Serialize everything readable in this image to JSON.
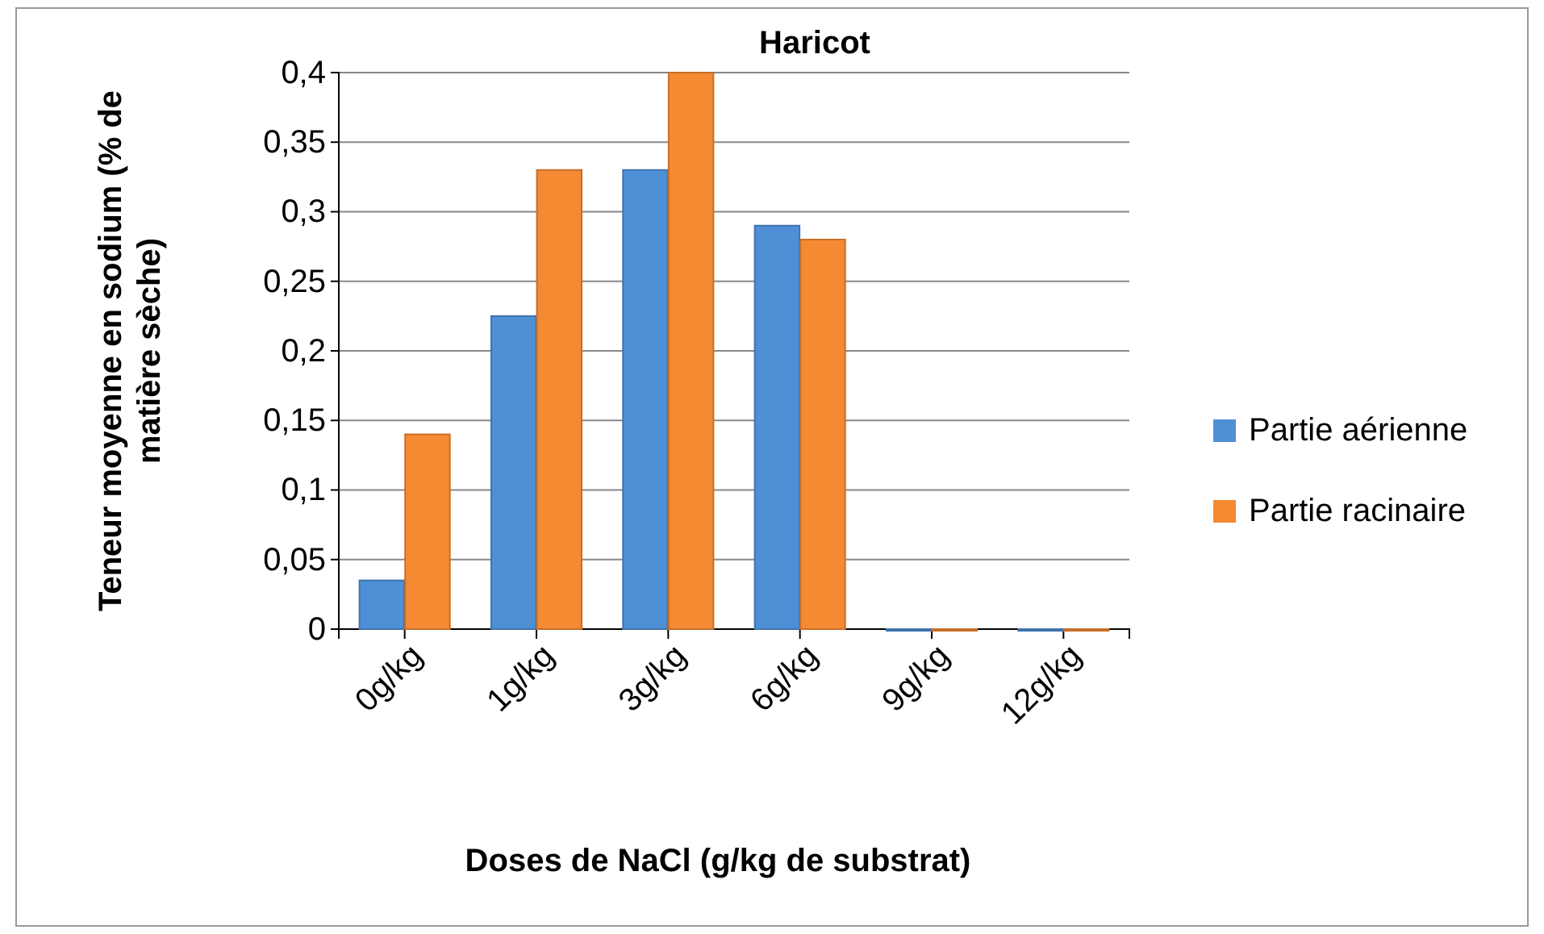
{
  "chart_data": {
    "type": "bar",
    "title": "Haricot",
    "xlabel": "Doses de NaCl (g/kg de substrat)",
    "ylabel": "Teneur moyenne en sodium (% de matière sèche)",
    "categories": [
      "0g/kg",
      "1g/kg",
      "3g/kg",
      "6g/kg",
      "9g/kg",
      "12g/kg"
    ],
    "series": [
      {
        "name": "Partie aérienne",
        "color": "#4f8fd6",
        "values": [
          0.035,
          0.225,
          0.33,
          0.29,
          0,
          0
        ]
      },
      {
        "name": "Partie racinaire",
        "color": "#f58a33",
        "values": [
          0.14,
          0.33,
          0.4,
          0.28,
          0,
          0
        ]
      }
    ],
    "ylim": [
      0,
      0.4
    ],
    "yticks": [
      0,
      {
        "value": 0.05,
        "label": "0,05"
      },
      {
        "value": 0.1,
        "label": "0,1"
      },
      {
        "value": 0.15,
        "label": "0,15"
      },
      {
        "value": 0.2,
        "label": "0,2"
      },
      {
        "value": 0.25,
        "label": "0,25"
      },
      {
        "value": 0.3,
        "label": "0,3"
      },
      {
        "value": 0.35,
        "label": "0,35"
      },
      {
        "value": 0.4,
        "label": "0,4"
      }
    ],
    "grid": "y",
    "legend": "right"
  }
}
